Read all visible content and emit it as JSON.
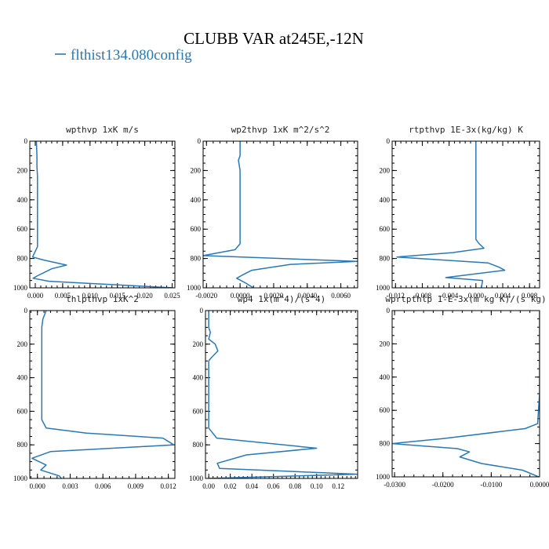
{
  "title": "CLUBB VAR at245E,-12N",
  "legend": {
    "label": "flthist134.080config",
    "color": "#2a78b4"
  },
  "chart_data": [
    {
      "type": "line",
      "title": "wpthvp   1xK m/s",
      "xlim": [
        -0.001,
        0.0255
      ],
      "ylim": [
        1000,
        0
      ],
      "xticks": [
        0.0,
        0.005,
        0.01,
        0.015,
        0.02,
        0.025
      ],
      "xtick_labels": [
        "0.000",
        "0.005",
        "0.010",
        "0.015",
        "0.020",
        "0.025"
      ],
      "yticks": [
        0,
        200,
        400,
        600,
        800,
        1000
      ],
      "ytick_labels": [
        "0",
        "200",
        "400",
        "600",
        "800",
        "1000"
      ],
      "series": [
        {
          "x": [
            0.0002,
            0.0003,
            0.0003,
            0.0004,
            0.0004,
            0.0004,
            0.0004,
            0.0004,
            0.0004,
            0.0004,
            -0.0005,
            0.0015,
            0.0057,
            0.003,
            0.0003,
            -0.0004,
            0.0025,
            0.0252
          ],
          "y": [
            0,
            100,
            170,
            240,
            320,
            400,
            480,
            560,
            640,
            720,
            790,
            810,
            845,
            870,
            920,
            935,
            955,
            1000
          ]
        }
      ]
    },
    {
      "type": "line",
      "title": "wp2thvp   1xK m^2/s^2",
      "xlim": [
        -0.0022,
        0.007
      ],
      "ylim": [
        1000,
        0
      ],
      "xticks": [
        -0.002,
        0.0,
        0.002,
        0.004,
        0.006
      ],
      "xtick_labels": [
        "-0.0020",
        "0.0000",
        "0.0020",
        "0.0040",
        "0.0060"
      ],
      "yticks": [
        0,
        200,
        400,
        600,
        800,
        1000
      ],
      "ytick_labels": [
        "0",
        "200",
        "400",
        "600",
        "800",
        "1000"
      ],
      "series": [
        {
          "x": [
            0.0,
            0.0,
            -0.0001,
            0.0,
            0.0,
            0.0,
            0.0,
            0.0,
            0.0,
            -0.0003,
            -0.0022,
            0.007,
            0.003,
            0.0007,
            0.0001,
            -0.0002,
            0.0003,
            0.0008
          ],
          "y": [
            0,
            100,
            130,
            200,
            300,
            400,
            500,
            600,
            700,
            740,
            780,
            820,
            840,
            880,
            915,
            935,
            965,
            1000
          ]
        }
      ]
    },
    {
      "type": "line",
      "title": "rtpthvp   1E-3x(kg/kg) K",
      "xlim": [
        -0.0125,
        0.0095
      ],
      "ylim": [
        1000,
        0
      ],
      "xticks": [
        -0.012,
        -0.008,
        -0.004,
        0.0,
        0.004,
        0.008
      ],
      "xtick_labels": [
        "-0.012",
        "-0.008",
        "-0.004",
        "0.000",
        "0.004",
        "0.008"
      ],
      "yticks": [
        0,
        200,
        400,
        600,
        800,
        1000
      ],
      "ytick_labels": [
        "0",
        "200",
        "400",
        "600",
        "800",
        "1000"
      ],
      "series": [
        {
          "x": [
            0.0,
            0.0,
            0.0,
            0.0,
            0.0,
            0.0,
            0.0,
            0.0,
            0.0005,
            0.0012,
            -0.0035,
            -0.0118,
            0.0018,
            0.0035,
            0.0043,
            -0.0045,
            0.001,
            0.0008
          ],
          "y": [
            0,
            100,
            200,
            300,
            400,
            500,
            600,
            670,
            700,
            730,
            760,
            790,
            830,
            860,
            880,
            930,
            950,
            1000
          ]
        }
      ]
    },
    {
      "type": "line",
      "title": "thlpthvp   1xK^2",
      "xlim": [
        -0.0007,
        0.0126
      ],
      "ylim": [
        1000,
        0
      ],
      "xticks": [
        0.0,
        0.003,
        0.006,
        0.009,
        0.012
      ],
      "xtick_labels": [
        "0.000",
        "0.003",
        "0.006",
        "0.009",
        "0.012"
      ],
      "yticks": [
        0,
        200,
        400,
        600,
        800,
        1000
      ],
      "ytick_labels": [
        "0",
        "200",
        "400",
        "600",
        "800",
        "1000"
      ],
      "series": [
        {
          "x": [
            0.0008,
            0.0005,
            0.0004,
            0.0004,
            0.0004,
            0.0004,
            0.0004,
            0.0004,
            0.0008,
            0.0045,
            0.0115,
            0.0125,
            0.0012,
            -0.0005,
            0.0008,
            0.0003,
            0.002,
            0.0022
          ],
          "y": [
            0,
            50,
            100,
            200,
            300,
            400,
            500,
            650,
            700,
            730,
            760,
            800,
            840,
            880,
            920,
            950,
            985,
            1000
          ]
        }
      ]
    },
    {
      "type": "line",
      "title": "wp4   1x(m^4)/(s^4)",
      "xlim": [
        -0.003,
        0.138
      ],
      "ylim": [
        1000,
        0
      ],
      "xticks": [
        0.0,
        0.02,
        0.04,
        0.06,
        0.08,
        0.1,
        0.12
      ],
      "xtick_labels": [
        "0.00",
        "0.02",
        "0.04",
        "0.06",
        "0.08",
        "0.10",
        "0.12"
      ],
      "yticks": [
        0,
        200,
        400,
        600,
        800,
        1000
      ],
      "ytick_labels": [
        "0",
        "200",
        "400",
        "600",
        "800",
        "1000"
      ],
      "series": [
        {
          "x": [
            0.0,
            0.0,
            0.0015,
            0.0,
            0.006,
            0.0085,
            0.0025,
            0.0,
            0.0,
            0.0,
            0.0,
            0.0,
            0.0075,
            0.1,
            0.035,
            0.008,
            0.01,
            0.138,
            0.0
          ],
          "y": [
            0,
            100,
            130,
            170,
            200,
            240,
            280,
            300,
            400,
            500,
            600,
            700,
            760,
            820,
            860,
            910,
            940,
            975,
            1000
          ]
        }
      ]
    },
    {
      "type": "line",
      "title": "wprtpthlp   1-E-3x(m kg K)/(s kg)",
      "xlim": [
        -0.0305,
        0.0
      ],
      "ylim": [
        1000,
        0
      ],
      "xticks": [
        -0.03,
        -0.02,
        -0.01,
        0.0
      ],
      "xtick_labels": [
        "-0.0300",
        "-0.0200",
        "-0.0100",
        "0.0000"
      ],
      "yticks": [
        0,
        200,
        400,
        600,
        800,
        1000
      ],
      "ytick_labels": [
        "0",
        "200",
        "400",
        "600",
        "800",
        "1000"
      ],
      "series": [
        {
          "x": [
            0.0,
            0.0,
            0.0,
            0.0,
            0.0,
            0.0,
            -0.0004,
            -0.003,
            -0.02,
            -0.0305,
            -0.017,
            -0.0145,
            -0.0165,
            -0.012,
            -0.0035,
            -0.0002
          ],
          "y": [
            0,
            100,
            200,
            300,
            400,
            500,
            680,
            710,
            770,
            800,
            830,
            850,
            880,
            920,
            960,
            1000
          ]
        }
      ]
    }
  ]
}
